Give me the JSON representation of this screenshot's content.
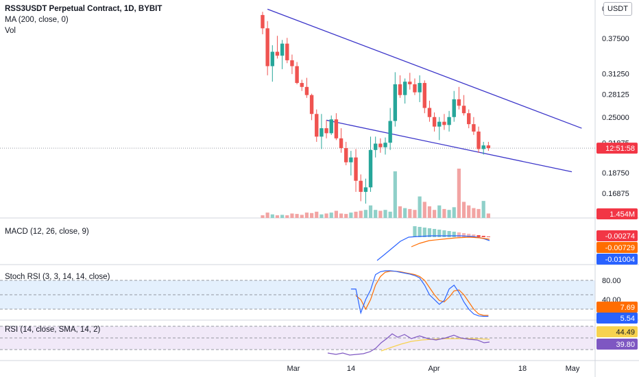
{
  "header": {
    "symbol_title": "RSS3USDT Perpetual Contract, 1D, BYBIT",
    "ma_label": "MA (200, close, 0)",
    "vol_label": "Vol",
    "currency_button": "USDT"
  },
  "panes": {
    "macd_label": "MACD (12, 26, close, 9)",
    "stoch_label": "Stoch RSI (3, 3, 14, 14, close)",
    "rsi_label": "RSI (14, close, SMA, 14, 2)"
  },
  "colors": {
    "up": "#26a69a",
    "down": "#ef5350",
    "up_vol": "#8fd0c9",
    "down_vol": "#f2a4a3",
    "trendline": "#3a34c9",
    "macd": "#2962ff",
    "signal": "#ff6d00",
    "stoch_k": "#2962ff",
    "stoch_d": "#ff6d00",
    "rsi": "#7e57c2",
    "rsi_ma": "#f7d24f",
    "stoch_band": "#e4f0fd",
    "rsi_band": "#f1e9f8",
    "countdown": "#f23645"
  },
  "chart_data": {
    "type": "candlestick",
    "price_axis_ticks": [
      "0.43750",
      "0.37500",
      "0.31250",
      "0.28125",
      "0.25000",
      "0.21875",
      "0.18750",
      "0.16875"
    ],
    "time_axis_ticks": [
      "Mar",
      "14",
      "Apr",
      "18",
      "May"
    ],
    "scale": "log",
    "badges": {
      "countdown": "12:51:58",
      "volume": "1.454M",
      "macd_hist": "-0.00274",
      "macd_signal": "-0.00729",
      "macd_line": "-0.01004",
      "stoch_k": "7.69",
      "stoch_d": "5.54",
      "rsi_ma": "44.49",
      "rsi": "39.80"
    },
    "stoch_axis_ticks": [
      "80.00",
      "40.00"
    ],
    "last_close": 0.213,
    "ohlc": [
      [
        0.423,
        0.43,
        0.383,
        0.395
      ],
      [
        0.395,
        0.41,
        0.31,
        0.325
      ],
      [
        0.325,
        0.362,
        0.3,
        0.35
      ],
      [
        0.35,
        0.38,
        0.338,
        0.343
      ],
      [
        0.343,
        0.372,
        0.32,
        0.365
      ],
      [
        0.365,
        0.376,
        0.33,
        0.335
      ],
      [
        0.335,
        0.345,
        0.312,
        0.325
      ],
      [
        0.325,
        0.332,
        0.296,
        0.298
      ],
      [
        0.298,
        0.303,
        0.286,
        0.292
      ],
      [
        0.292,
        0.306,
        0.276,
        0.28
      ],
      [
        0.28,
        0.282,
        0.246,
        0.254
      ],
      [
        0.254,
        0.26,
        0.22,
        0.226
      ],
      [
        0.226,
        0.254,
        0.212,
        0.236
      ],
      [
        0.236,
        0.246,
        0.224,
        0.23
      ],
      [
        0.23,
        0.252,
        0.228,
        0.247
      ],
      [
        0.247,
        0.255,
        0.222,
        0.224
      ],
      [
        0.224,
        0.236,
        0.208,
        0.213
      ],
      [
        0.213,
        0.22,
        0.195,
        0.198
      ],
      [
        0.198,
        0.21,
        0.185,
        0.203
      ],
      [
        0.203,
        0.212,
        0.17,
        0.18
      ],
      [
        0.18,
        0.186,
        0.162,
        0.17
      ],
      [
        0.17,
        0.182,
        0.16,
        0.174
      ],
      [
        0.174,
        0.226,
        0.17,
        0.211
      ],
      [
        0.211,
        0.226,
        0.203,
        0.218
      ],
      [
        0.218,
        0.224,
        0.208,
        0.214
      ],
      [
        0.214,
        0.225,
        0.206,
        0.219
      ],
      [
        0.219,
        0.262,
        0.211,
        0.245
      ],
      [
        0.245,
        0.315,
        0.238,
        0.296
      ],
      [
        0.296,
        0.31,
        0.276,
        0.28
      ],
      [
        0.28,
        0.305,
        0.268,
        0.3
      ],
      [
        0.3,
        0.314,
        0.288,
        0.296
      ],
      [
        0.296,
        0.305,
        0.28,
        0.284
      ],
      [
        0.284,
        0.31,
        0.27,
        0.298
      ],
      [
        0.298,
        0.302,
        0.255,
        0.262
      ],
      [
        0.262,
        0.272,
        0.244,
        0.25
      ],
      [
        0.25,
        0.256,
        0.232,
        0.238
      ],
      [
        0.238,
        0.25,
        0.222,
        0.244
      ],
      [
        0.244,
        0.254,
        0.234,
        0.24
      ],
      [
        0.24,
        0.258,
        0.232,
        0.25
      ],
      [
        0.25,
        0.286,
        0.244,
        0.274
      ],
      [
        0.274,
        0.292,
        0.26,
        0.265
      ],
      [
        0.265,
        0.28,
        0.252,
        0.255
      ],
      [
        0.255,
        0.26,
        0.236,
        0.241
      ],
      [
        0.241,
        0.25,
        0.228,
        0.232
      ],
      [
        0.232,
        0.238,
        0.208,
        0.212
      ],
      [
        0.212,
        0.22,
        0.206,
        0.216
      ],
      [
        0.216,
        0.22,
        0.21,
        0.213
      ]
    ],
    "volume": [
      0.3,
      0.6,
      0.4,
      0.3,
      0.35,
      0.3,
      0.5,
      0.45,
      0.35,
      0.6,
      0.55,
      0.7,
      0.4,
      0.5,
      0.6,
      0.8,
      0.5,
      0.45,
      0.6,
      0.7,
      0.8,
      0.9,
      1.4,
      0.9,
      0.8,
      0.9,
      0.7,
      5.2,
      1.3,
      1.1,
      1.0,
      0.9,
      2.4,
      1.8,
      1.3,
      0.9,
      1.4,
      1.0,
      0.9,
      1.2,
      5.5,
      1.8,
      1.4,
      1.1,
      1.0,
      1.9,
      0.5
    ],
    "trendlines": [
      {
        "from": [
          1,
          0.436
        ],
        "to": [
          34,
          0.3
        ],
        "extend_to": 65,
        "extend_value": 0.236
      },
      {
        "from": [
          13,
          0.246
        ],
        "to": [
          46,
          0.207
        ],
        "extend_to": 63,
        "extend_value": 0.1885
      }
    ]
  }
}
